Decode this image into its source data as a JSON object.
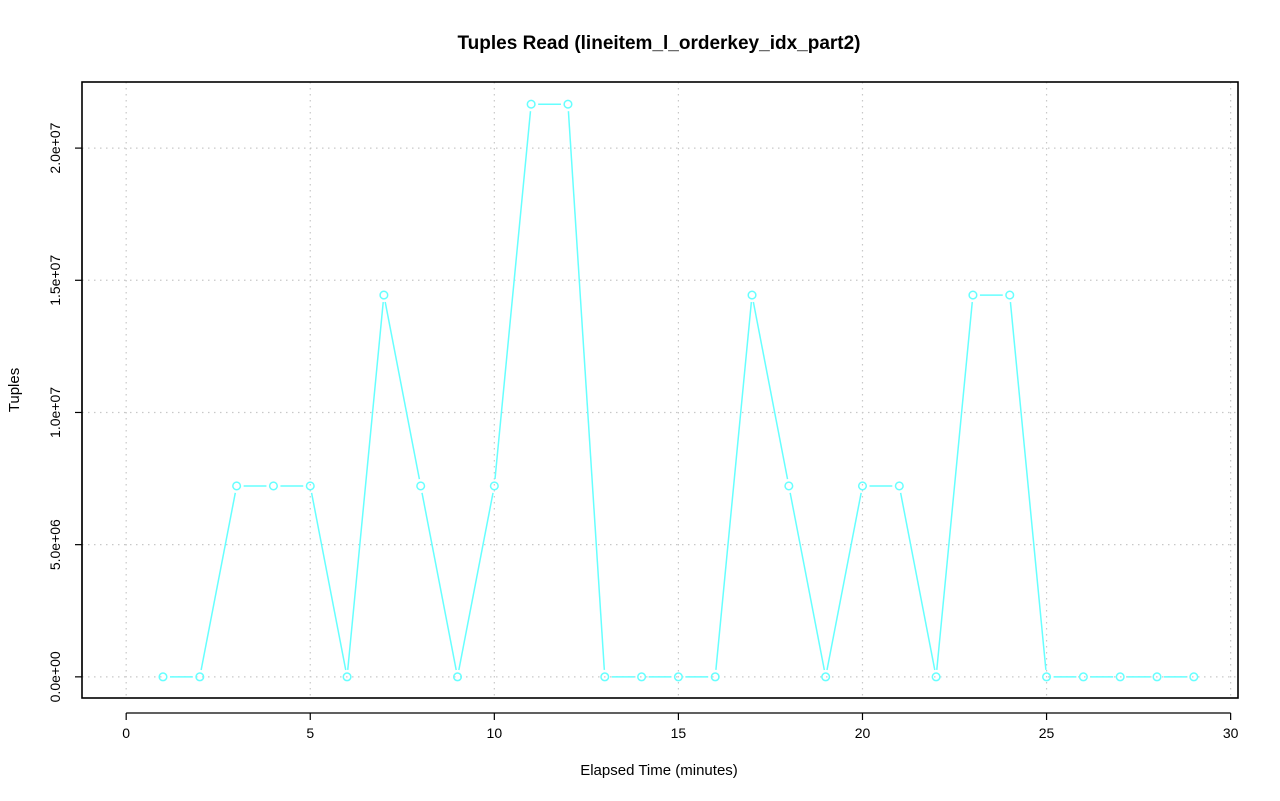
{
  "chart_data": {
    "type": "line",
    "title": "Tuples Read (lineitem_l_orderkey_idx_part2)",
    "xlabel": "Elapsed Time (minutes)",
    "ylabel": "Tuples",
    "xlim": [
      -1.2,
      30.2
    ],
    "ylim": [
      -800000,
      22500000
    ],
    "x_ticks": [
      0,
      5,
      10,
      15,
      20,
      25,
      30
    ],
    "x_tick_labels": [
      "0",
      "5",
      "10",
      "15",
      "20",
      "25",
      "30"
    ],
    "y_ticks": [
      0,
      5000000,
      10000000,
      15000000,
      20000000
    ],
    "y_tick_labels": [
      "0.0e+00",
      "5.0e+06",
      "1.0e+07",
      "1.5e+07",
      "2.0e+07"
    ],
    "grid": true,
    "legend": "none",
    "series": [
      {
        "color": "#66ffff",
        "marker": "open-circle",
        "x": [
          1,
          2,
          3,
          4,
          5,
          6,
          7,
          8,
          9,
          10,
          11,
          12,
          13,
          14,
          15,
          16,
          17,
          18,
          19,
          20,
          21,
          22,
          23,
          24,
          25,
          26,
          27,
          28,
          29
        ],
        "y": [
          0,
          0,
          7220000,
          7220000,
          7220000,
          0,
          14440000,
          7220000,
          0,
          7220000,
          21660000,
          21660000,
          0,
          0,
          0,
          0,
          14440000,
          7220000,
          0,
          7220000,
          7220000,
          0,
          14440000,
          14440000,
          0,
          0,
          0,
          0,
          0
        ]
      }
    ]
  }
}
